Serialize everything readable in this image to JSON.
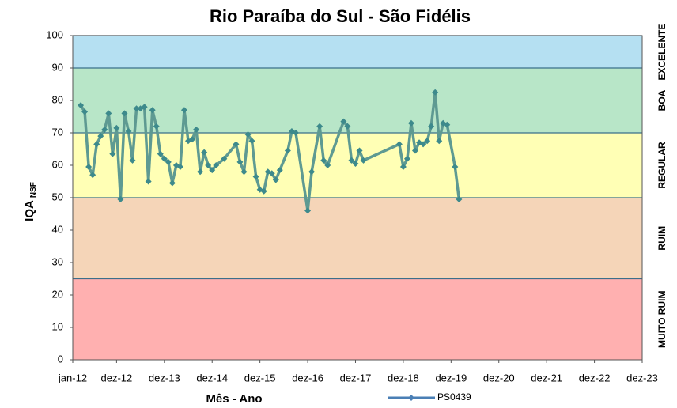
{
  "chart_data": {
    "type": "line",
    "title": "Rio Paraíba do Sul - São Fidélis",
    "xlabel": "Mês - Ano",
    "ylabel": {
      "text": "IQA",
      "subscript": "NSF"
    },
    "xlim": [
      0,
      143
    ],
    "xticks": [
      {
        "value": 0,
        "label": "jan-12"
      },
      {
        "value": 11,
        "label": "dez-12"
      },
      {
        "value": 23,
        "label": "dez-13"
      },
      {
        "value": 35,
        "label": "dez-14"
      },
      {
        "value": 47,
        "label": "dez-15"
      },
      {
        "value": 59,
        "label": "dez-16"
      },
      {
        "value": 71,
        "label": "dez-17"
      },
      {
        "value": 83,
        "label": "dez-18"
      },
      {
        "value": 95,
        "label": "dez-19"
      },
      {
        "value": 107,
        "label": "dez-20"
      },
      {
        "value": 119,
        "label": "dez-21"
      },
      {
        "value": 131,
        "label": "dez-22"
      },
      {
        "value": 143,
        "label": "dez-23"
      }
    ],
    "ylim": [
      0,
      100
    ],
    "yticks": [
      0,
      10,
      20,
      30,
      40,
      50,
      60,
      70,
      80,
      90,
      100
    ],
    "bands": [
      {
        "label": "MUITO RUIM",
        "from": 0,
        "to": 25,
        "color": "#ffb0b0"
      },
      {
        "label": "RUIM",
        "from": 25,
        "to": 50,
        "color": "#f5d5b8"
      },
      {
        "label": "REGULAR",
        "from": 50,
        "to": 70,
        "color": "#ffffb5"
      },
      {
        "label": "BOA",
        "from": 70,
        "to": 90,
        "color": "#b8e6c8"
      },
      {
        "label": "EXCELENTE",
        "from": 90,
        "to": 100,
        "color": "#b5e0f2"
      }
    ],
    "legend": "bottom",
    "series": [
      {
        "name": "PS0439",
        "color": "#5e9a92",
        "x": [
          2,
          3,
          4,
          5,
          6,
          7,
          8,
          9,
          10,
          11,
          12,
          13,
          14,
          15,
          16,
          17,
          18,
          19,
          20,
          21,
          22,
          23,
          24,
          25,
          26,
          27,
          28,
          29,
          30,
          31,
          32,
          33,
          34,
          35,
          36,
          38,
          41,
          42,
          43,
          44,
          45,
          46,
          47,
          48,
          49,
          50,
          51,
          52,
          54,
          55,
          56,
          59,
          60,
          62,
          63,
          64,
          68,
          69,
          70,
          71,
          72,
          73,
          82,
          83,
          84,
          85,
          86,
          87,
          88,
          89,
          90,
          91,
          92,
          93,
          94,
          96,
          97
        ],
        "values": [
          78.5,
          76.5,
          59.5,
          57,
          66.5,
          69,
          71,
          76,
          63.5,
          71.5,
          49.5,
          76,
          70.5,
          61.5,
          77.5,
          77.5,
          78,
          55,
          77,
          72,
          63.5,
          62,
          61,
          54.5,
          60,
          59.5,
          77,
          67.5,
          68,
          71,
          58,
          64,
          60,
          58.5,
          60,
          62,
          66.5,
          61,
          58,
          69.5,
          67.5,
          56.5,
          52.5,
          52,
          58,
          57.5,
          55.5,
          58.5,
          64.5,
          70.5,
          70,
          46,
          58,
          72,
          61.5,
          60,
          73.5,
          72,
          61.5,
          60.5,
          64.5,
          61.5,
          66.5,
          59.5,
          62,
          73,
          64.5,
          67,
          66.5,
          67.5,
          72,
          82.5,
          67.5,
          73,
          72.5,
          59.5,
          49.5
        ]
      }
    ]
  }
}
